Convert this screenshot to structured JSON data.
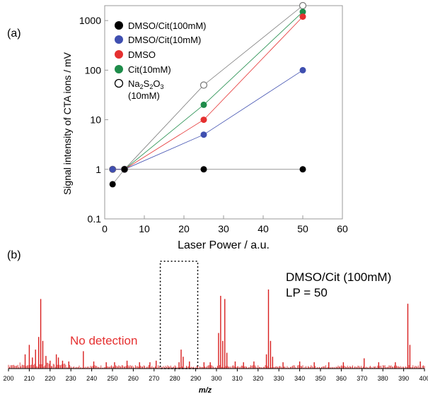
{
  "colors": {
    "black_series": "#000000",
    "blue_series": "#3f4fb0",
    "red_series": "#e53030",
    "green_series": "#1e8c4a",
    "na2s2o3_series": "#777777",
    "spectrum": "#d81e1e",
    "annotation_red": "#e53030"
  },
  "chart_data": [
    {
      "panel_label": "(a)",
      "type": "scatter",
      "xlabel": "Laser Power / a.u.",
      "ylabel": "Signal intensity of CTA ions / mV",
      "xlim": [
        0,
        60
      ],
      "ylim": [
        0.1,
        2000
      ],
      "y_scale": "log",
      "x_ticks": [
        "0",
        "10",
        "20",
        "30",
        "40",
        "50",
        "60"
      ],
      "y_ticks": [
        "0.1",
        "1",
        "10",
        "100",
        "1000"
      ],
      "legend_position": "top-left",
      "series": [
        {
          "name": "DMSO/Cit(100mM)",
          "color": "#000000",
          "marker": "filled",
          "x": [
            2,
            5,
            25,
            50
          ],
          "y": [
            0.5,
            1,
            1,
            1
          ]
        },
        {
          "name": "DMSO/Cit(10mM)",
          "color": "#3f4fb0",
          "marker": "filled",
          "x": [
            2,
            5,
            25,
            50
          ],
          "y": [
            1,
            1,
            5,
            100
          ]
        },
        {
          "name": "DMSO",
          "color": "#e53030",
          "marker": "filled",
          "x": [
            2,
            5,
            25,
            50
          ],
          "y": [
            1,
            1,
            10,
            1200
          ]
        },
        {
          "name": "Cit(10mM)",
          "color": "#1e8c4a",
          "marker": "filled",
          "x": [
            2,
            5,
            25,
            50
          ],
          "y": [
            1,
            1,
            20,
            1500
          ]
        },
        {
          "name": "Na2S2O3 (10mM)",
          "color": "#777777",
          "marker": "open",
          "x": [
            2,
            5,
            25,
            50
          ],
          "y": [
            1,
            1,
            50,
            2000
          ]
        }
      ]
    },
    {
      "panel_label": "(b)",
      "type": "line",
      "xlabel": "m/z",
      "xlim": [
        200,
        400
      ],
      "x_ticks": [
        "200",
        "210",
        "220",
        "230",
        "240",
        "250",
        "260",
        "270",
        "280",
        "290",
        "300",
        "310",
        "320",
        "330",
        "340",
        "350",
        "360",
        "370",
        "380",
        "390",
        "400"
      ],
      "annotation_condition": "DMSO/Cit (100mM)",
      "annotation_lp": "LP = 50",
      "annotation_no_detection": "No detection",
      "highlight_box": [
        273,
        291
      ],
      "peaks": [
        {
          "x": 208,
          "y": 0.18
        },
        {
          "x": 210,
          "y": 0.3
        },
        {
          "x": 211.5,
          "y": 0.14
        },
        {
          "x": 213,
          "y": 0.24
        },
        {
          "x": 214.5,
          "y": 0.4
        },
        {
          "x": 215.5,
          "y": 0.88
        },
        {
          "x": 216.5,
          "y": 0.35
        },
        {
          "x": 218,
          "y": 0.16
        },
        {
          "x": 220,
          "y": 0.1
        },
        {
          "x": 223,
          "y": 0.18
        },
        {
          "x": 224,
          "y": 0.14
        },
        {
          "x": 226,
          "y": 0.1
        },
        {
          "x": 229,
          "y": 0.09
        },
        {
          "x": 236,
          "y": 0.22
        },
        {
          "x": 241,
          "y": 0.09
        },
        {
          "x": 247,
          "y": 0.08
        },
        {
          "x": 251,
          "y": 0.08
        },
        {
          "x": 257,
          "y": 0.1
        },
        {
          "x": 263,
          "y": 0.08
        },
        {
          "x": 268,
          "y": 0.08
        },
        {
          "x": 271,
          "y": 0.1
        },
        {
          "x": 282,
          "y": 0.08
        },
        {
          "x": 283,
          "y": 0.24
        },
        {
          "x": 284,
          "y": 0.15
        },
        {
          "x": 287,
          "y": 0.09
        },
        {
          "x": 294,
          "y": 0.08
        },
        {
          "x": 297,
          "y": 0.08
        },
        {
          "x": 301,
          "y": 0.45
        },
        {
          "x": 302,
          "y": 0.92
        },
        {
          "x": 303,
          "y": 0.35
        },
        {
          "x": 304,
          "y": 0.88
        },
        {
          "x": 305,
          "y": 0.2
        },
        {
          "x": 309,
          "y": 0.09
        },
        {
          "x": 313,
          "y": 0.08
        },
        {
          "x": 318,
          "y": 0.09
        },
        {
          "x": 324,
          "y": 0.18
        },
        {
          "x": 325,
          "y": 1.0
        },
        {
          "x": 326,
          "y": 0.35
        },
        {
          "x": 327,
          "y": 0.15
        },
        {
          "x": 332,
          "y": 0.08
        },
        {
          "x": 340,
          "y": 0.09
        },
        {
          "x": 347,
          "y": 0.08
        },
        {
          "x": 354,
          "y": 0.08
        },
        {
          "x": 361,
          "y": 0.08
        },
        {
          "x": 371,
          "y": 0.13
        },
        {
          "x": 378,
          "y": 0.08
        },
        {
          "x": 386,
          "y": 0.08
        },
        {
          "x": 392,
          "y": 0.82
        },
        {
          "x": 393,
          "y": 0.3
        },
        {
          "x": 398,
          "y": 0.09
        }
      ]
    }
  ]
}
